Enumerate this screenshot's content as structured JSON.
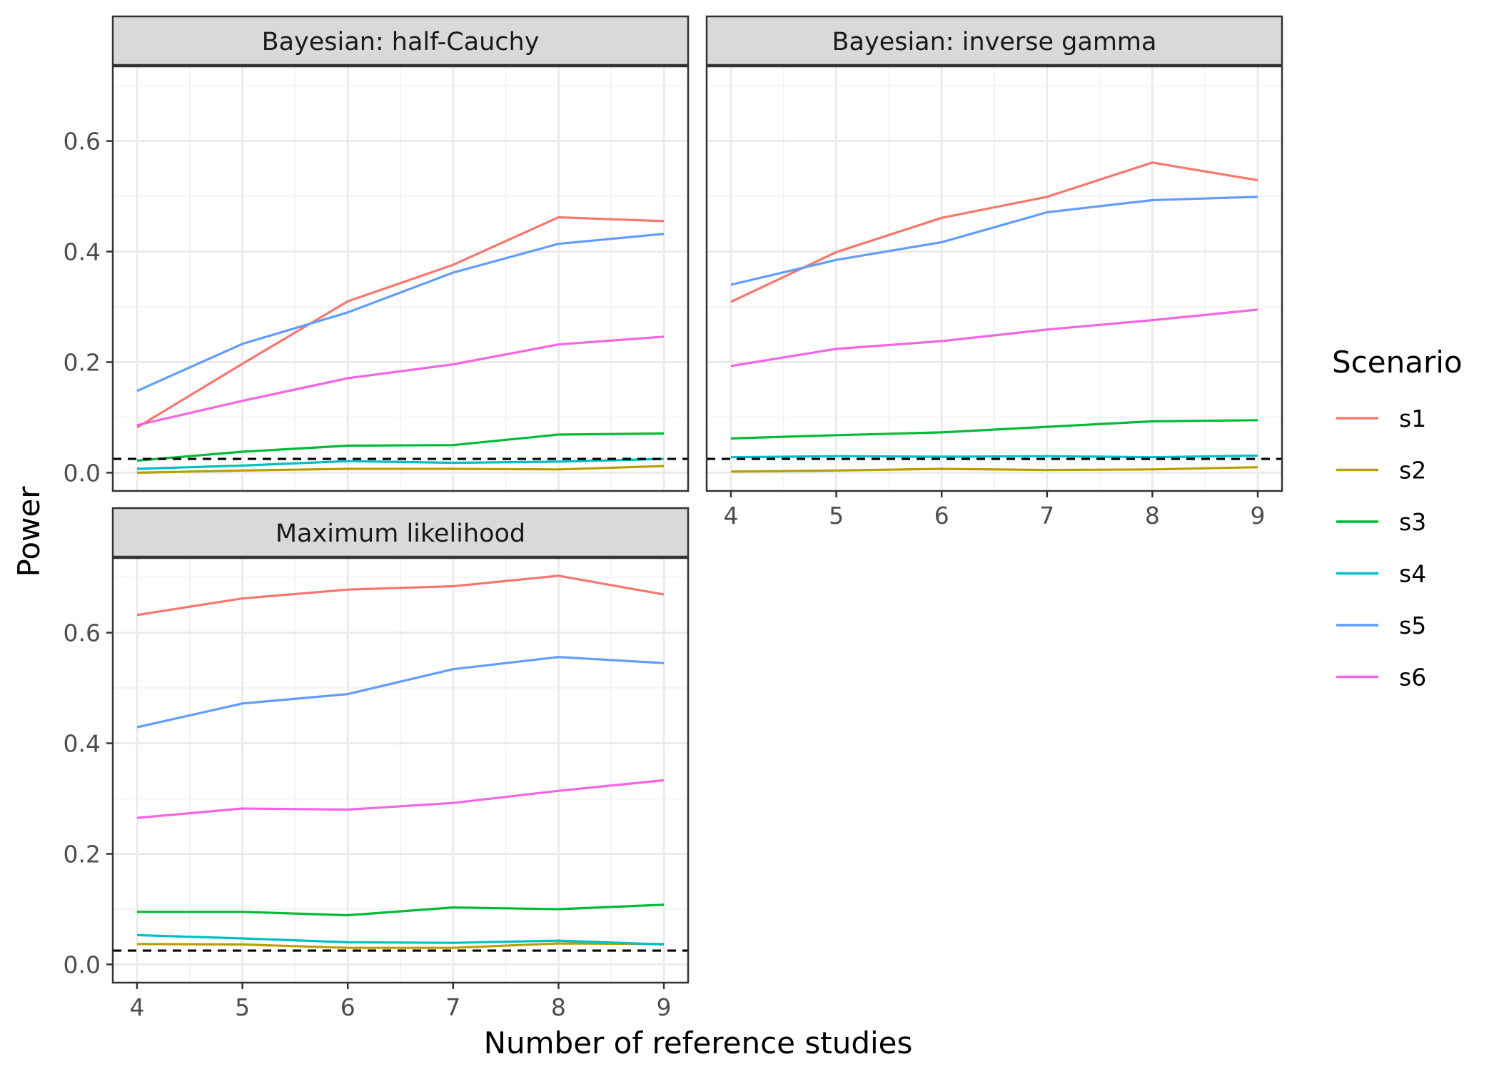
{
  "chart_data": {
    "type": "line",
    "xlabel": "Number of reference studies",
    "ylabel": "Power",
    "x": [
      4,
      5,
      6,
      7,
      8,
      9
    ],
    "xlim": [
      3.77,
      9.23
    ],
    "ylim": [
      -0.033,
      0.735
    ],
    "x_ticks": [
      "4",
      "5",
      "6",
      "7",
      "8",
      "9"
    ],
    "y_ticks": [
      "0.0",
      "0.2",
      "0.4",
      "0.6"
    ],
    "y_tick_values": [
      0.0,
      0.2,
      0.4,
      0.6
    ],
    "grid": true,
    "reference_line": {
      "y": 0.025,
      "style": "dashed",
      "color": "#000000"
    },
    "legend": {
      "title": "Scenario",
      "position": "right",
      "entries": [
        {
          "name": "s1",
          "color": "#F8766D"
        },
        {
          "name": "s2",
          "color": "#B79F00"
        },
        {
          "name": "s3",
          "color": "#00BA38"
        },
        {
          "name": "s4",
          "color": "#00BFC4"
        },
        {
          "name": "s5",
          "color": "#619CFF"
        },
        {
          "name": "s6",
          "color": "#F564E3"
        }
      ]
    },
    "panels": [
      {
        "title": "Bayesian: half-Cauchy",
        "series": [
          {
            "name": "s1",
            "values": [
              0.082,
              0.197,
              0.31,
              0.376,
              0.462,
              0.455
            ]
          },
          {
            "name": "s2",
            "values": [
              0.0,
              0.004,
              0.007,
              0.007,
              0.006,
              0.012
            ]
          },
          {
            "name": "s3",
            "values": [
              0.022,
              0.038,
              0.049,
              0.05,
              0.069,
              0.071
            ]
          },
          {
            "name": "s4",
            "values": [
              0.007,
              0.013,
              0.021,
              0.018,
              0.02,
              0.025
            ]
          },
          {
            "name": "s5",
            "values": [
              0.148,
              0.233,
              0.29,
              0.362,
              0.414,
              0.432
            ]
          },
          {
            "name": "s6",
            "values": [
              0.086,
              0.13,
              0.171,
              0.196,
              0.232,
              0.246
            ]
          }
        ]
      },
      {
        "title": "Bayesian: inverse gamma",
        "series": [
          {
            "name": "s1",
            "values": [
              0.309,
              0.399,
              0.461,
              0.499,
              0.561,
              0.529
            ]
          },
          {
            "name": "s2",
            "values": [
              0.002,
              0.004,
              0.007,
              0.005,
              0.006,
              0.01
            ]
          },
          {
            "name": "s3",
            "values": [
              0.062,
              0.068,
              0.073,
              0.083,
              0.093,
              0.095
            ]
          },
          {
            "name": "s4",
            "values": [
              0.028,
              0.03,
              0.029,
              0.03,
              0.028,
              0.031
            ]
          },
          {
            "name": "s5",
            "values": [
              0.34,
              0.385,
              0.417,
              0.471,
              0.493,
              0.499
            ]
          },
          {
            "name": "s6",
            "values": [
              0.193,
              0.224,
              0.238,
              0.259,
              0.276,
              0.295
            ]
          }
        ]
      },
      {
        "title": "Maximum likelihood",
        "series": [
          {
            "name": "s1",
            "values": [
              0.632,
              0.662,
              0.678,
              0.684,
              0.703,
              0.669
            ]
          },
          {
            "name": "s2",
            "values": [
              0.037,
              0.036,
              0.03,
              0.03,
              0.038,
              0.037
            ]
          },
          {
            "name": "s3",
            "values": [
              0.095,
              0.095,
              0.089,
              0.103,
              0.1,
              0.108
            ]
          },
          {
            "name": "s4",
            "values": [
              0.053,
              0.047,
              0.04,
              0.039,
              0.043,
              0.036
            ]
          },
          {
            "name": "s5",
            "values": [
              0.429,
              0.472,
              0.489,
              0.534,
              0.556,
              0.545
            ]
          },
          {
            "name": "s6",
            "values": [
              0.265,
              0.282,
              0.28,
              0.292,
              0.314,
              0.333
            ]
          }
        ]
      }
    ]
  }
}
